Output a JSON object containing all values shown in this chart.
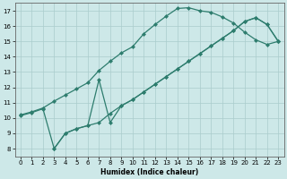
{
  "line_color": "#2e7d6e",
  "bg_color": "#cde8e8",
  "grid_color": "#aacccc",
  "xlabel": "Humidex (Indice chaleur)",
  "xlim": [
    -0.5,
    23.5
  ],
  "ylim": [
    7.5,
    17.5
  ],
  "xticks": [
    0,
    1,
    2,
    3,
    4,
    5,
    6,
    7,
    8,
    9,
    10,
    11,
    12,
    13,
    14,
    15,
    16,
    17,
    18,
    19,
    20,
    21,
    22,
    23
  ],
  "yticks": [
    8,
    9,
    10,
    11,
    12,
    13,
    14,
    15,
    16,
    17
  ],
  "line_a_x": [
    0,
    1,
    2,
    3,
    4,
    5,
    6,
    7,
    8,
    9,
    10,
    11,
    12,
    13,
    14,
    15,
    16,
    17,
    18,
    19,
    20,
    21,
    22,
    23
  ],
  "line_a_y": [
    10.2,
    10.4,
    10.65,
    11.1,
    11.5,
    11.9,
    12.3,
    13.1,
    13.7,
    14.25,
    14.65,
    15.5,
    16.1,
    16.65,
    17.15,
    17.2,
    17.0,
    16.9,
    16.6,
    16.2,
    15.6,
    15.1,
    14.8,
    15.0
  ],
  "line_b_x": [
    3,
    4,
    5,
    6,
    7,
    8,
    9,
    10,
    11,
    12,
    13,
    14,
    15,
    16,
    17,
    18,
    19,
    20,
    21,
    22,
    23
  ],
  "line_b_y": [
    8.0,
    9.0,
    9.3,
    9.5,
    9.7,
    10.3,
    10.8,
    11.2,
    11.7,
    12.2,
    12.7,
    13.2,
    13.7,
    14.2,
    14.7,
    15.2,
    15.7,
    16.3,
    16.55,
    16.1,
    15.0
  ],
  "line_c_x": [
    0,
    1,
    2,
    3,
    4,
    5,
    6,
    7,
    8,
    9,
    10,
    11,
    12,
    13,
    14,
    15,
    16,
    17,
    18,
    19,
    20,
    21,
    22,
    23
  ],
  "line_c_y": [
    10.15,
    10.35,
    10.6,
    8.0,
    9.0,
    9.3,
    9.5,
    12.5,
    9.7,
    10.8,
    11.2,
    11.7,
    12.2,
    12.7,
    13.2,
    13.7,
    14.2,
    14.7,
    15.2,
    15.7,
    16.3,
    16.55,
    16.1,
    15.0
  ]
}
